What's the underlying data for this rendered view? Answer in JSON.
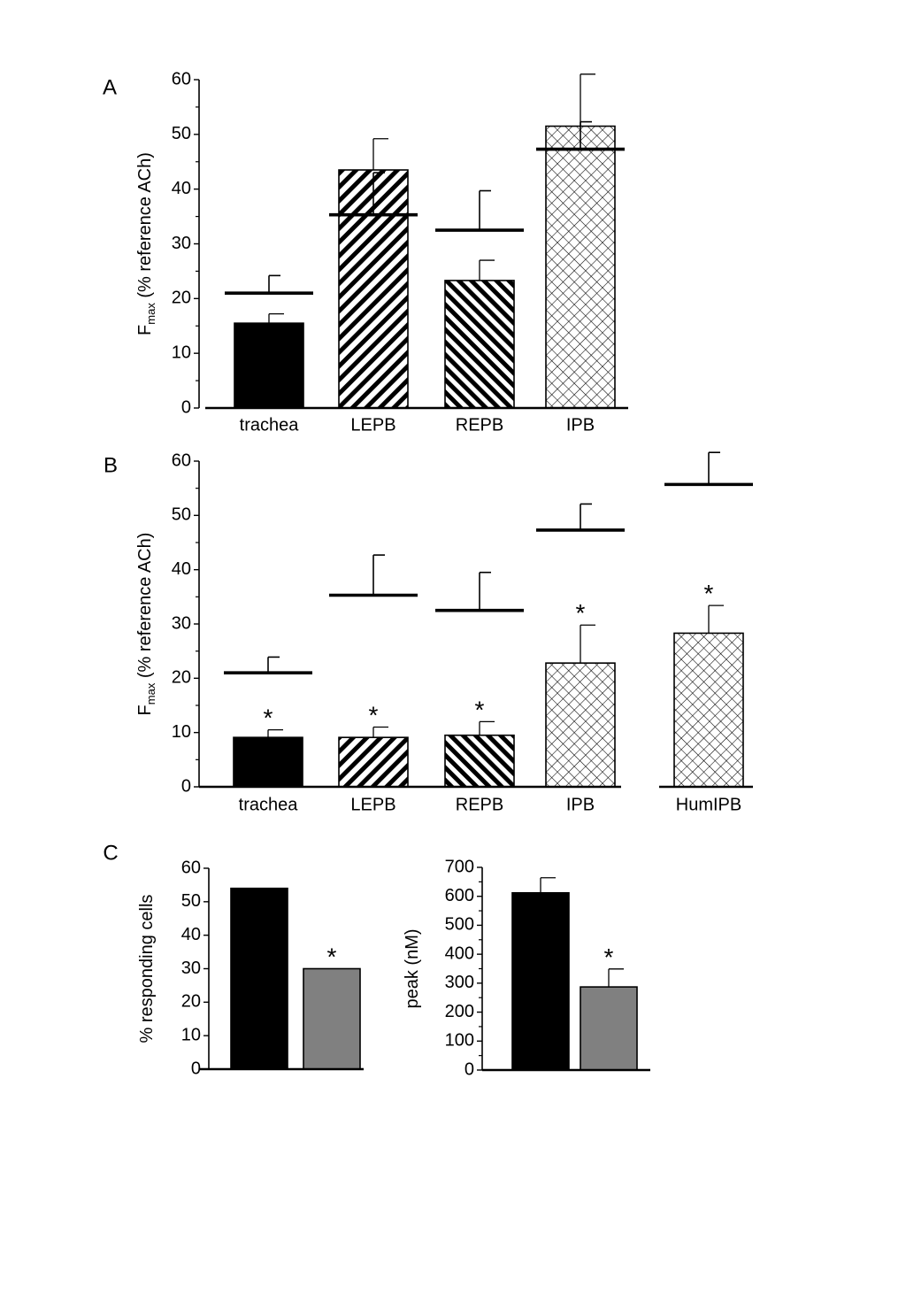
{
  "chart_data": [
    {
      "panel": "A",
      "type": "bar",
      "ylabel_main": "F",
      "ylabel_sub": "max",
      "ylabel_rest": " (% reference ACh)",
      "ylim": [
        0,
        60
      ],
      "yticks": [
        0,
        10,
        20,
        30,
        40,
        50,
        60
      ],
      "categories": [
        "trachea",
        "LEPB",
        "REPB",
        "IPB"
      ],
      "values": [
        15.5,
        43.5,
        23.3,
        51.5
      ],
      "errors": [
        1.7,
        5.7,
        3.7,
        9.5
      ],
      "patterns": [
        "solid",
        "diag-left",
        "diag-right",
        "cross"
      ],
      "reference_values": [
        21,
        35.3,
        32.5,
        47.3
      ],
      "reference_errors": [
        3.2,
        7.7,
        7.2,
        5.0
      ],
      "significant": [
        false,
        false,
        false,
        false
      ]
    },
    {
      "panel": "B",
      "type": "bar",
      "ylabel_main": "F",
      "ylabel_sub": "max",
      "ylabel_rest": " (% reference ACh)",
      "ylim": [
        0,
        60
      ],
      "yticks": [
        0,
        10,
        20,
        30,
        40,
        50,
        60
      ],
      "categories": [
        "trachea",
        "LEPB",
        "REPB",
        "IPB",
        "HumIPB"
      ],
      "values": [
        9.1,
        9.1,
        9.5,
        22.8,
        28.3
      ],
      "errors": [
        1.4,
        1.9,
        2.5,
        7.0,
        5.1
      ],
      "patterns": [
        "solid",
        "diag-left",
        "diag-right",
        "cross",
        "cross"
      ],
      "reference_values": [
        21,
        35.3,
        32.5,
        47.3,
        55.7
      ],
      "reference_errors": [
        2.9,
        7.4,
        7.0,
        4.8,
        5.9
      ],
      "significant": [
        true,
        true,
        true,
        true,
        true
      ],
      "marker": "*"
    },
    {
      "panel": "C",
      "type": "bar",
      "ylabel": "% responding cells",
      "ylim": [
        0,
        60
      ],
      "yticks": [
        0,
        10,
        20,
        30,
        40,
        50,
        60
      ],
      "values": [
        54,
        30
      ],
      "errors": [
        0,
        0
      ],
      "colors": [
        "#000000",
        "#808080"
      ],
      "significant": [
        false,
        true
      ],
      "marker": "*"
    },
    {
      "panel": "",
      "type": "bar",
      "ylabel": "peak (nM)",
      "ylim": [
        0,
        700
      ],
      "yticks": [
        0,
        100,
        200,
        300,
        400,
        500,
        600,
        700
      ],
      "values": [
        612,
        287
      ],
      "errors": [
        52,
        62
      ],
      "colors": [
        "#000000",
        "#808080"
      ],
      "significant": [
        false,
        true
      ],
      "marker": "*"
    }
  ]
}
